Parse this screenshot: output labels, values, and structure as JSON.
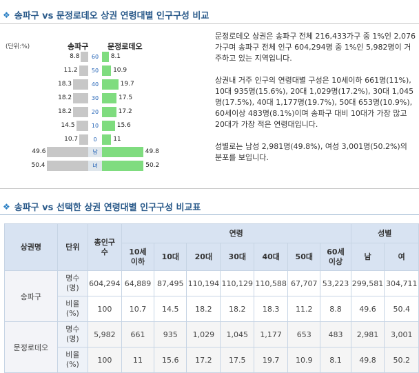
{
  "section1": {
    "title": "송파구 vs 문정로데오 상권 연령대별 인구구성 비교"
  },
  "section2": {
    "title": "송파구 vs 선택한 상권 연령대별 인구구성 비교표"
  },
  "chart_data": {
    "type": "bar",
    "unit_label": "(단위:%)",
    "series": [
      {
        "name": "송파구",
        "values": [
          8.8,
          11.2,
          18.3,
          18.2,
          18.2,
          14.5,
          10.7
        ],
        "gender_values": [
          49.6,
          50.4
        ]
      },
      {
        "name": "문정로데오",
        "values": [
          8.1,
          10.9,
          19.7,
          17.5,
          17.2,
          15.6,
          11
        ],
        "gender_values": [
          49.8,
          50.2
        ]
      }
    ],
    "categories": [
      "60",
      "50",
      "40",
      "30",
      "20",
      "10",
      "0"
    ],
    "gender_categories": [
      "남",
      "녀"
    ],
    "xlim": [
      0,
      50
    ]
  },
  "description": {
    "p1": "문정로데오 상권은 송파구 전체 216,433가구 중 1%인 2,076가구며 송파구 전체 인구 604,294명 중 1%인 5,982명이 거주하고 있는 지역입니다.",
    "p2": "상권내 거주 인구의 연령대별 구성은 10세이하 661명(11%), 10대 935명(15.6%), 20대 1,029명(17.2%), 30대 1,045명(17.5%), 40대 1,177명(19.7%), 50대 653명(10.9%), 60세이상 483명(8.1%)이며 송파구 대비 10대가 가장 많고 20대가 가장 적은 연령대입니다.",
    "p3": "성별로는 남성 2,981명(49.8%), 여성 3,001명(50.2%)의 분포를 보입니다."
  },
  "table": {
    "headers": {
      "area": "상권명",
      "unit": "단위",
      "households": "총인구수",
      "age_group": "연령",
      "gender_group": "성별",
      "ages": [
        "10세이하",
        "10대",
        "20대",
        "30대",
        "40대",
        "50대",
        "60세이상"
      ],
      "genders": [
        "남",
        "여"
      ]
    },
    "rows": [
      {
        "name": "송파구",
        "count_label": "명수(명)",
        "ratio_label": "비율(%)",
        "count": [
          "604,294",
          "64,889",
          "87,495",
          "110,194",
          "110,129",
          "110,588",
          "67,707",
          "53,223",
          "299,581",
          "304,711"
        ],
        "ratio": [
          "100",
          "10.7",
          "14.5",
          "18.2",
          "18.2",
          "18.3",
          "11.2",
          "8.8",
          "49.6",
          "50.4"
        ]
      },
      {
        "name": "문정로데오",
        "count_label": "명수(명)",
        "ratio_label": "비율(%)",
        "count": [
          "5,982",
          "661",
          "935",
          "1,029",
          "1,045",
          "1,177",
          "653",
          "483",
          "2,981",
          "3,001"
        ],
        "ratio": [
          "100",
          "11",
          "15.6",
          "17.2",
          "17.5",
          "19.7",
          "10.9",
          "8.1",
          "49.8",
          "50.2"
        ]
      }
    ]
  }
}
